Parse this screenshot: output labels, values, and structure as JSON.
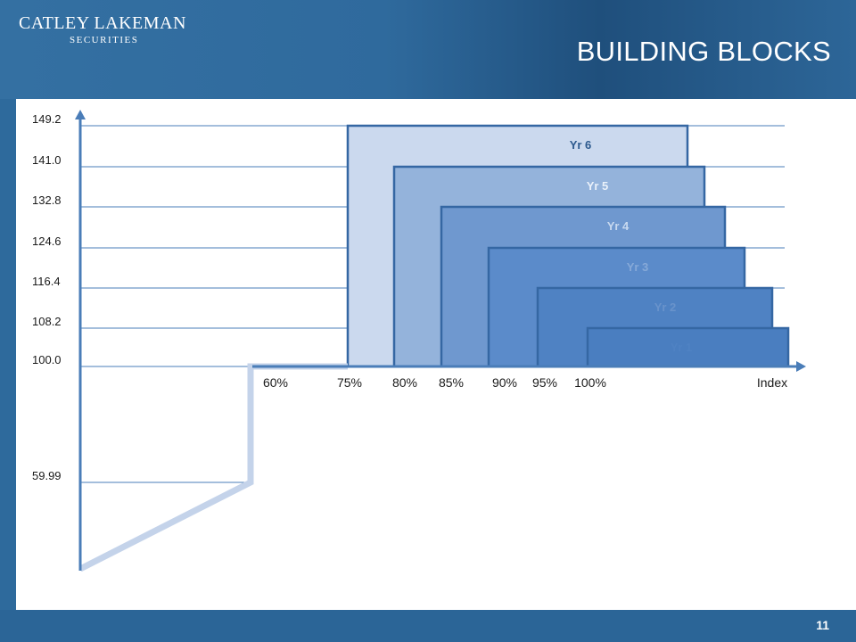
{
  "header": {
    "logo_main": "CATLEY LAKEMAN",
    "logo_sub": "SECURITIES",
    "title": "BUILDING BLOCKS"
  },
  "footer": {
    "page_number": "11"
  },
  "colors": {
    "header": "#2f6a9d",
    "axis": "#4a7db8",
    "payoff_line": "#c4d3ea",
    "block_border": "#3567a3"
  },
  "diagram": {
    "y_ticks": [
      "149.2",
      "141.0",
      "132.8",
      "124.6",
      "116.4",
      "108.2",
      "100.0",
      "59.99"
    ],
    "x_ticks": [
      "60%",
      "75%",
      "80%",
      "85%",
      "90%",
      "95%",
      "100%"
    ],
    "x_axis_label": "Index",
    "blocks": [
      {
        "label": "Yr 6",
        "fill": "#cbd9ee",
        "text": "#2d5a8e"
      },
      {
        "label": "Yr 5",
        "fill": "#94b3db",
        "text": "#eaf1fa"
      },
      {
        "label": "Yr 4",
        "fill": "#6f98cf",
        "text": "#c8d9ef"
      },
      {
        "label": "Yr 3",
        "fill": "#5b8bca",
        "text": "#86a9d8"
      },
      {
        "label": "Yr 2",
        "fill": "#4f82c3",
        "text": "#6993cb"
      },
      {
        "label": "Yr 1",
        "fill": "#4a7ec0",
        "text": "#4f82c3"
      }
    ]
  }
}
